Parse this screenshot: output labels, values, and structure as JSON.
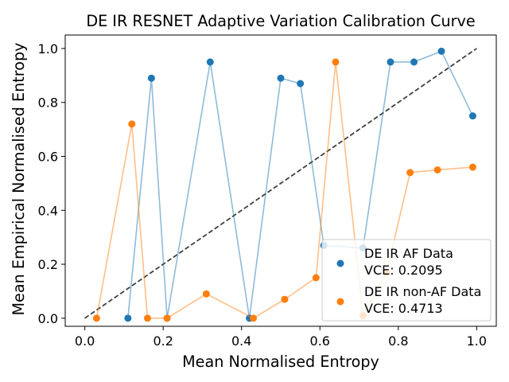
{
  "chart_data": {
    "type": "line",
    "title": "DE IR RESNET Adaptive Variation Calibration Curve",
    "xlabel": "Mean Normalised Entropy",
    "ylabel": "Mean Empirical Normalised Entropy",
    "xlim": [
      -0.05,
      1.05
    ],
    "ylim": [
      -0.03,
      1.05
    ],
    "xticks": [
      0.0,
      0.2,
      0.4,
      0.6,
      0.8,
      1.0
    ],
    "xtick_labels": [
      "0.0",
      "0.2",
      "0.4",
      "0.6",
      "0.8",
      "1.0"
    ],
    "yticks": [
      0.0,
      0.2,
      0.4,
      0.6,
      0.8,
      1.0
    ],
    "ytick_labels": [
      "0.0",
      "0.2",
      "0.4",
      "0.6",
      "0.8",
      "1.0"
    ],
    "grid": false,
    "legend_position": "bottom-right",
    "reference_line": {
      "x": [
        0,
        1
      ],
      "y": [
        0,
        1
      ],
      "style": "dashed",
      "color": "#404040"
    },
    "series": [
      {
        "name": "DE IR AF Data",
        "legend_label_1": "DE IR AF Data",
        "legend_label_2": "VCE: 0.2095",
        "color": "#1f77b4",
        "x": [
          0.11,
          0.17,
          0.21,
          0.32,
          0.42,
          0.5,
          0.55,
          0.61,
          0.71,
          0.78,
          0.84,
          0.91,
          0.99
        ],
        "y": [
          0.0,
          0.89,
          0.0,
          0.95,
          0.0,
          0.89,
          0.87,
          0.27,
          0.26,
          0.95,
          0.95,
          0.99,
          0.75
        ]
      },
      {
        "name": "DE IR non-AF Data",
        "legend_label_1": "DE IR non-AF Data",
        "legend_label_2": "VCE: 0.4713",
        "color": "#ff7f0e",
        "x": [
          0.03,
          0.12,
          0.16,
          0.21,
          0.31,
          0.43,
          0.51,
          0.59,
          0.64,
          0.71,
          0.77,
          0.83,
          0.9,
          0.99
        ],
        "y": [
          0.0,
          0.72,
          0.0,
          0.0,
          0.09,
          0.0,
          0.07,
          0.15,
          0.95,
          0.01,
          0.17,
          0.54,
          0.55,
          0.56
        ]
      }
    ]
  }
}
